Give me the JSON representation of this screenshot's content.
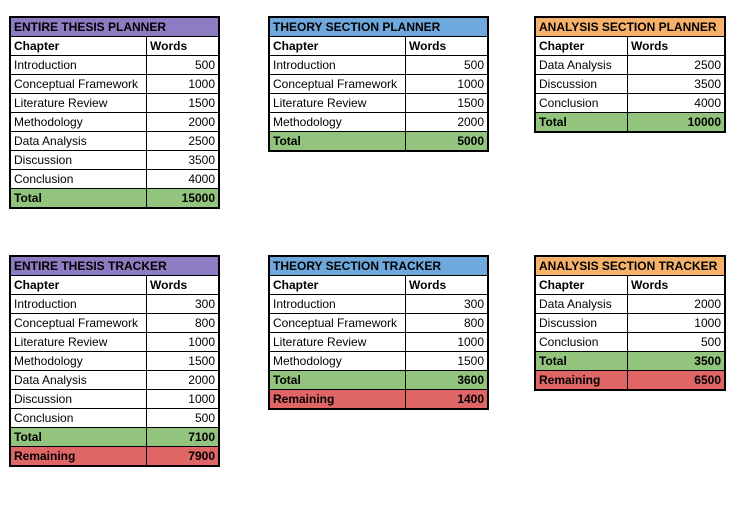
{
  "colors": {
    "purple": "#8e7cc3",
    "blue": "#6fa8dc",
    "orange": "#f6b26b",
    "green": "#93c47d",
    "red": "#e06666"
  },
  "headers": {
    "chapter": "Chapter",
    "words": "Words"
  },
  "total_label": "Total",
  "remaining_label": "Remaining",
  "tables": {
    "entire_planner": {
      "title": "ENTIRE THESIS PLANNER",
      "rows": [
        {
          "chapter": "Introduction",
          "words": "500"
        },
        {
          "chapter": "Conceptual Framework",
          "words": "1000"
        },
        {
          "chapter": "Literature Review",
          "words": "1500"
        },
        {
          "chapter": "Methodology",
          "words": "2000"
        },
        {
          "chapter": "Data Analysis",
          "words": "2500"
        },
        {
          "chapter": "Discussion",
          "words": "3500"
        },
        {
          "chapter": "Conclusion",
          "words": "4000"
        }
      ],
      "total": "15000"
    },
    "theory_planner": {
      "title": "THEORY SECTION PLANNER",
      "rows": [
        {
          "chapter": "Introduction",
          "words": "500"
        },
        {
          "chapter": "Conceptual Framework",
          "words": "1000"
        },
        {
          "chapter": "Literature Review",
          "words": "1500"
        },
        {
          "chapter": "Methodology",
          "words": "2000"
        }
      ],
      "total": "5000"
    },
    "analysis_planner": {
      "title": "ANALYSIS SECTION PLANNER",
      "rows": [
        {
          "chapter": "Data Analysis",
          "words": "2500"
        },
        {
          "chapter": "Discussion",
          "words": "3500"
        },
        {
          "chapter": "Conclusion",
          "words": "4000"
        }
      ],
      "total": "10000"
    },
    "entire_tracker": {
      "title": "ENTIRE THESIS TRACKER",
      "rows": [
        {
          "chapter": "Introduction",
          "words": "300"
        },
        {
          "chapter": "Conceptual Framework",
          "words": "800"
        },
        {
          "chapter": "Literature Review",
          "words": "1000"
        },
        {
          "chapter": "Methodology",
          "words": "1500"
        },
        {
          "chapter": "Data Analysis",
          "words": "2000"
        },
        {
          "chapter": "Discussion",
          "words": "1000"
        },
        {
          "chapter": "Conclusion",
          "words": "500"
        }
      ],
      "total": "7100",
      "remaining": "7900"
    },
    "theory_tracker": {
      "title": "THEORY SECTION TRACKER",
      "rows": [
        {
          "chapter": "Introduction",
          "words": "300"
        },
        {
          "chapter": "Conceptual Framework",
          "words": "800"
        },
        {
          "chapter": "Literature Review",
          "words": "1000"
        },
        {
          "chapter": "Methodology",
          "words": "1500"
        }
      ],
      "total": "3600",
      "remaining": "1400"
    },
    "analysis_tracker": {
      "title": "ANALYSIS SECTION TRACKER",
      "rows": [
        {
          "chapter": "Data Analysis",
          "words": "2000"
        },
        {
          "chapter": "Discussion",
          "words": "1000"
        },
        {
          "chapter": "Conclusion",
          "words": "500"
        }
      ],
      "total": "3500",
      "remaining": "6500"
    }
  }
}
